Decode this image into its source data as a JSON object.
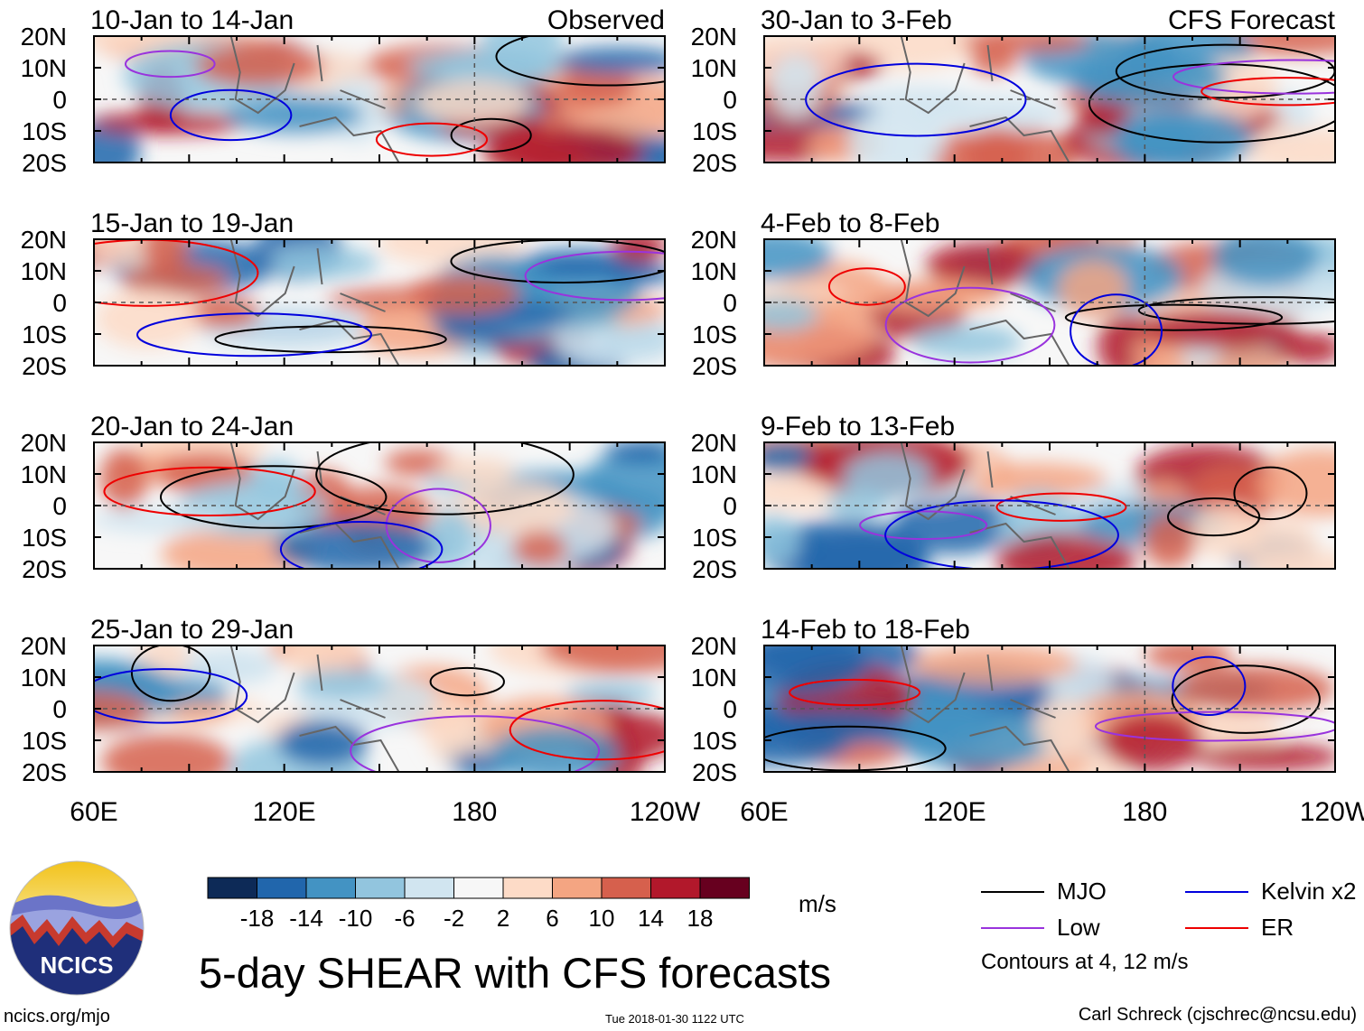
{
  "chart_data": {
    "type": "heatmap",
    "title": "5-day SHEAR with CFS forecasts",
    "colorbar_units": "m/s",
    "colorbar_ticks": [
      "-18",
      "-14",
      "-10",
      "-6",
      "-2",
      "2",
      "6",
      "10",
      "14",
      "18"
    ],
    "colorbar_colors": [
      "#0d2a57",
      "#2166ac",
      "#4393c3",
      "#92c5de",
      "#d1e5f0",
      "#f7f7f7",
      "#fddbc7",
      "#f4a582",
      "#d6604d",
      "#b2182b",
      "#67001f"
    ],
    "x_ticks": [
      "60E",
      "120E",
      "180",
      "120W"
    ],
    "y_ticks": [
      "20N",
      "10N",
      "0",
      "10S",
      "20S"
    ],
    "columns": {
      "left": "Observed",
      "right": "CFS Forecast"
    },
    "panels": [
      {
        "label": "10-Jan to 14-Jan",
        "source": "Observed"
      },
      {
        "label": "15-Jan to 19-Jan",
        "source": "Observed"
      },
      {
        "label": "20-Jan to 24-Jan",
        "source": "Observed"
      },
      {
        "label": "25-Jan to 29-Jan",
        "source": "Observed"
      },
      {
        "label": "30-Jan to 3-Feb",
        "source": "CFS Forecast"
      },
      {
        "label": "4-Feb to 8-Feb",
        "source": "CFS Forecast"
      },
      {
        "label": "9-Feb to 13-Feb",
        "source": "CFS Forecast"
      },
      {
        "label": "14-Feb to 18-Feb",
        "source": "CFS Forecast"
      }
    ],
    "contour_legend": [
      {
        "name": "MJO",
        "color": "#000000"
      },
      {
        "name": "Kelvin x2",
        "color": "#0000dd"
      },
      {
        "name": "Low",
        "color": "#9933dd"
      },
      {
        "name": "ER",
        "color": "#ee0000"
      }
    ],
    "contour_note": "Contours at 4, 12 m/s"
  },
  "footer": {
    "site": "ncics.org/mjo",
    "timestamp": "Tue 2018-01-30 1122 UTC",
    "author": "Carl Schreck (cjschrec@ncsu.edu)",
    "logo_text": "NCICS"
  }
}
